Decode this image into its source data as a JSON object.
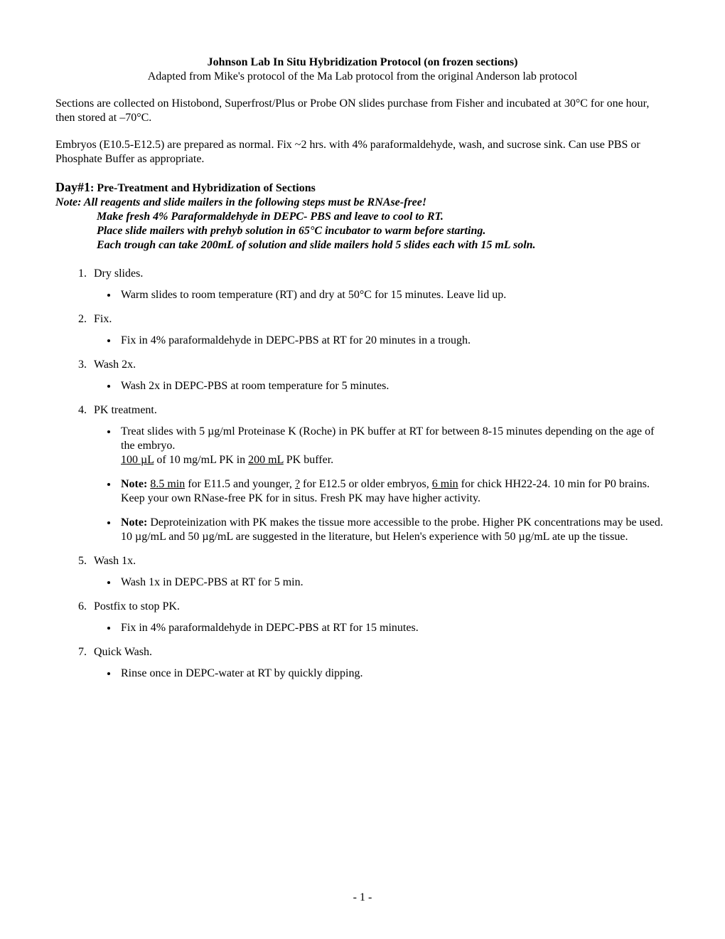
{
  "header": {
    "title": "Johnson Lab In Situ Hybridization Protocol (on frozen sections)",
    "subtitle": "Adapted from Mike's protocol of the Ma Lab protocol from the original Anderson lab protocol"
  },
  "intro": {
    "p1": "Sections are collected on Histobond, Superfrost/Plus or Probe ON slides purchase from Fisher and incubated at 30°C for one hour, then stored at –70°C.",
    "p2": "Embryos (E10.5-E12.5) are prepared as normal. Fix ~2 hrs. with 4% paraformaldehyde, wash, and sucrose sink.  Can use PBS or Phosphate Buffer as appropriate."
  },
  "day1": {
    "label": "Day#1",
    "heading": ": Pre-Treatment and Hybridization of Sections",
    "note_label": "Note:   ",
    "notes": {
      "n1": "All reagents and slide mailers in the following steps must be RNAse-free!",
      "n2": "Make fresh 4% Paraformaldehyde in DEPC- PBS and leave to cool to RT.",
      "n3": "Place slide mailers with prehyb solution in 65°C incubator to warm before starting.",
      "n4": "Each trough can take 200mL of solution and slide mailers hold 5 slides each with 15 mL soln."
    }
  },
  "steps": {
    "s1": {
      "title": "Dry slides.",
      "b1": "Warm slides to room temperature (RT) and dry at 50°C for 15 minutes. Leave lid up."
    },
    "s2": {
      "title": "Fix.",
      "b1": "Fix in 4% paraformaldehyde in DEPC-PBS at RT for 20 minutes in a trough."
    },
    "s3": {
      "title": "Wash 2x.",
      "b1": "Wash 2x in DEPC-PBS at room temperature for 5 minutes."
    },
    "s4": {
      "title": "PK treatment.",
      "b1a": "Treat slides with 5 µg/ml Proteinase K (Roche) in PK buffer at RT for between 8-15 minutes depending on the age of the embryo.",
      "b1_u1": "100 µL",
      "b1_mid": " of 10 mg/mL PK in ",
      "b1_u2": "200 mL",
      "b1_end": " PK buffer.",
      "b2_note": "Note:",
      "b2_sp": "  ",
      "b2_u1": "8.5 min",
      "b2_t1": " for E11.5 and younger, ",
      "b2_u2": "?",
      "b2_t2": " for E12.5 or older embryos, ",
      "b2_u3": "6 min",
      "b2_t3": " for chick HH22-24. 10 min for P0 brains. Keep your own RNase-free PK for in situs. Fresh PK may have higher activity.",
      "b3_note": "Note:",
      "b3_text": " Deproteinization with PK makes the tissue more accessible to the probe. Higher PK concentrations may be used.  10 µg/mL and 50 µg/mL are suggested in the literature, but Helen's experience with 50 µg/mL ate up the tissue."
    },
    "s5": {
      "title": "Wash 1x.",
      "b1": "Wash 1x in DEPC-PBS at RT for 5 min."
    },
    "s6": {
      "title": "Postfix to stop PK.",
      "b1": "Fix in 4% paraformaldehyde in DEPC-PBS at RT for 15 minutes."
    },
    "s7": {
      "title": "Quick Wash.",
      "b1": "Rinse once in DEPC-water at RT by quickly dipping."
    }
  },
  "page_number": "- 1 -"
}
